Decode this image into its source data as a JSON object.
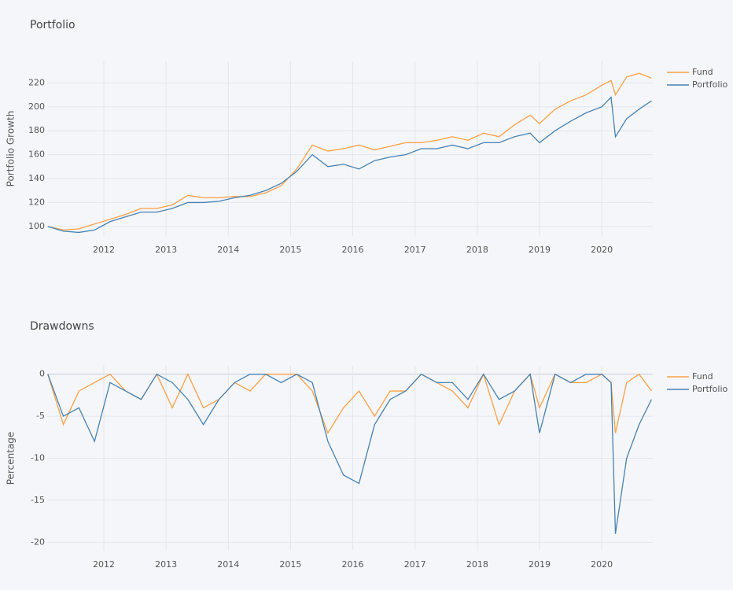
{
  "chart_data": [
    {
      "type": "line",
      "title": "Portfolio",
      "y_label": "Portfolio Growth",
      "grid": true,
      "legend": "top-right",
      "x": [
        2011.1,
        2011.35,
        2011.6,
        2011.85,
        2012.1,
        2012.35,
        2012.6,
        2012.85,
        2013.1,
        2013.35,
        2013.6,
        2013.85,
        2014.1,
        2014.35,
        2014.6,
        2014.85,
        2015.1,
        2015.35,
        2015.6,
        2015.85,
        2016.1,
        2016.35,
        2016.6,
        2016.85,
        2017.1,
        2017.35,
        2017.6,
        2017.85,
        2018.1,
        2018.35,
        2018.6,
        2018.85,
        2019.0,
        2019.25,
        2019.5,
        2019.75,
        2020.0,
        2020.15,
        2020.22,
        2020.4,
        2020.6,
        2020.8
      ],
      "series": [
        {
          "name": "Fund",
          "color": "#f9a046",
          "values": [
            100,
            97,
            98,
            102,
            106,
            110,
            115,
            115,
            118,
            126,
            124,
            124,
            125,
            125,
            128,
            134,
            148,
            168,
            163,
            165,
            168,
            164,
            167,
            170,
            170,
            172,
            175,
            172,
            178,
            175,
            185,
            193,
            186,
            198,
            205,
            210,
            218,
            222,
            210,
            225,
            228,
            224
          ]
        },
        {
          "name": "Portfolio",
          "color": "#4682b4",
          "values": [
            100,
            96,
            95,
            97,
            104,
            108,
            112,
            112,
            115,
            120,
            120,
            121,
            124,
            126,
            130,
            136,
            146,
            160,
            150,
            152,
            148,
            155,
            158,
            160,
            165,
            165,
            168,
            165,
            170,
            170,
            175,
            178,
            170,
            180,
            188,
            195,
            200,
            208,
            175,
            190,
            198,
            205
          ]
        }
      ],
      "xlim": [
        2011.09,
        2020.82
      ],
      "xticks": [
        2012,
        2013,
        2014,
        2015,
        2016,
        2017,
        2018,
        2019,
        2020
      ],
      "ylim": [
        92,
        238
      ],
      "yticks": [
        100,
        120,
        140,
        160,
        180,
        200,
        220
      ]
    },
    {
      "type": "line",
      "title": "Drawdowns",
      "y_label": "Percentage",
      "grid": true,
      "legend": "top-right",
      "x": [
        2011.1,
        2011.35,
        2011.6,
        2011.85,
        2012.1,
        2012.35,
        2012.6,
        2012.85,
        2013.1,
        2013.35,
        2013.6,
        2013.85,
        2014.1,
        2014.35,
        2014.6,
        2014.85,
        2015.1,
        2015.35,
        2015.6,
        2015.85,
        2016.1,
        2016.35,
        2016.6,
        2016.85,
        2017.1,
        2017.35,
        2017.6,
        2017.85,
        2018.1,
        2018.35,
        2018.6,
        2018.85,
        2019.0,
        2019.25,
        2019.5,
        2019.75,
        2020.0,
        2020.15,
        2020.22,
        2020.4,
        2020.6,
        2020.8
      ],
      "series": [
        {
          "name": "Fund",
          "color": "#f9a046",
          "values": [
            0,
            -6,
            -2,
            -1,
            0,
            -2,
            -3,
            0,
            -4,
            0,
            -4,
            -3,
            -1,
            -2,
            0,
            0,
            0,
            -2,
            -7,
            -4,
            -2,
            -5,
            -2,
            -2,
            0,
            -1,
            -2,
            -4,
            0,
            -6,
            -2,
            0,
            -4,
            0,
            -1,
            -1,
            0,
            -1,
            -7,
            -1,
            0,
            -2
          ]
        },
        {
          "name": "Portfolio",
          "color": "#4682b4",
          "values": [
            0,
            -5,
            -4,
            -8,
            -1,
            -2,
            -3,
            0,
            -1,
            -3,
            -6,
            -3,
            -1,
            0,
            0,
            -1,
            0,
            -1,
            -8,
            -12,
            -13,
            -6,
            -3,
            -2,
            0,
            -1,
            -1,
            -3,
            0,
            -3,
            -2,
            0,
            -7,
            0,
            -1,
            0,
            0,
            -1,
            -19,
            -10,
            -6,
            -3
          ]
        }
      ],
      "xlim": [
        2011.09,
        2020.82
      ],
      "xticks": [
        2012,
        2013,
        2014,
        2015,
        2016,
        2017,
        2018,
        2019,
        2020
      ],
      "ylim": [
        -21,
        1
      ],
      "yticks": [
        -20,
        -15,
        -10,
        -5,
        0
      ]
    }
  ]
}
